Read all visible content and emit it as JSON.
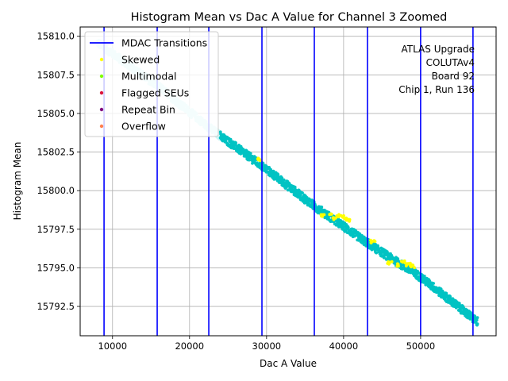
{
  "chart_data": {
    "type": "scatter",
    "title": "Histogram Mean vs Dac A Value for Channel 3 Zoomed",
    "xlabel": "Dac A Value",
    "ylabel": "Histogram Mean",
    "xlim": [
      5800,
      59800
    ],
    "ylim": [
      15790.6,
      15810.6
    ],
    "x_ticks": [
      10000,
      20000,
      30000,
      40000,
      50000
    ],
    "y_ticks": [
      15792.5,
      15795.0,
      15797.5,
      15800.0,
      15802.5,
      15805.0,
      15807.5,
      15810.0
    ],
    "grid": true,
    "legend_position": "top-left",
    "annotation": [
      "ATLAS Upgrade",
      "COLUTAv4",
      "Board 92",
      "Chip 1, Run 136"
    ],
    "mdac_transitions": {
      "name": "MDAC Transitions",
      "color": "#0000ff",
      "x": [
        8900,
        15800,
        22500,
        29400,
        36200,
        43100,
        50000,
        56800
      ]
    },
    "legend": [
      {
        "name": "MDAC Transitions",
        "kind": "line",
        "color": "#0000ff"
      },
      {
        "name": "Skewed",
        "kind": "dot",
        "color": "#ffff00"
      },
      {
        "name": "Multimodal",
        "kind": "dot",
        "color": "#7fff00"
      },
      {
        "name": "Flagged SEUs",
        "kind": "dot",
        "color": "#dc143c"
      },
      {
        "name": "Repeat Bin",
        "kind": "dot",
        "color": "#800080"
      },
      {
        "name": "Overflow",
        "kind": "dot",
        "color": "#ff7f50"
      }
    ],
    "main_series": {
      "color": "#00c3c3",
      "light_color": "#c8f5f5",
      "x_range": [
        8000,
        57400
      ],
      "note": "dense monotonic decreasing band; light-shaded below ~Dac A 24000"
    },
    "trend_points": [
      {
        "x": 8000,
        "y": 15809.6
      },
      {
        "x": 15800,
        "y": 15806.8
      },
      {
        "x": 22500,
        "y": 15804.1
      },
      {
        "x": 29400,
        "y": 15801.6
      },
      {
        "x": 36200,
        "y": 15799.0
      },
      {
        "x": 43100,
        "y": 15796.6
      },
      {
        "x": 50000,
        "y": 15794.4
      },
      {
        "x": 57400,
        "y": 15791.5
      }
    ],
    "skewed_points": [
      {
        "x": 28900,
        "y": 15802.0
      },
      {
        "x": 37200,
        "y": 15798.4
      },
      {
        "x": 38200,
        "y": 15798.5
      },
      {
        "x": 38900,
        "y": 15798.2
      },
      {
        "x": 39400,
        "y": 15798.4
      },
      {
        "x": 40100,
        "y": 15798.3
      },
      {
        "x": 40600,
        "y": 15798.1
      },
      {
        "x": 43800,
        "y": 15796.7
      },
      {
        "x": 46000,
        "y": 15795.3
      },
      {
        "x": 47200,
        "y": 15795.2
      },
      {
        "x": 47800,
        "y": 15795.4
      },
      {
        "x": 48400,
        "y": 15795.2
      },
      {
        "x": 48900,
        "y": 15795.1
      }
    ]
  }
}
